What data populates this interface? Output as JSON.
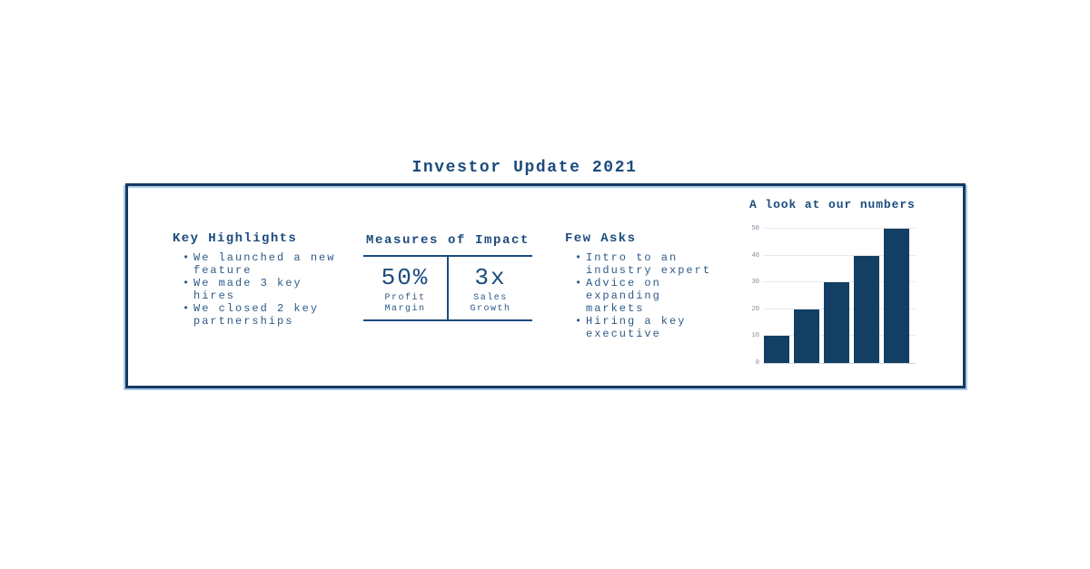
{
  "title": "Investor Update 2021",
  "card": {
    "key_highlights": {
      "heading": "Key Highlights",
      "items": [
        "We launched a new feature",
        "We made 3 key hires",
        "We closed 2 key partnerships"
      ]
    },
    "measures": {
      "heading": "Measures of Impact",
      "stats": [
        {
          "value": "50%",
          "label": "Profit Margin"
        },
        {
          "value": "3x",
          "label": "Sales Growth"
        }
      ]
    },
    "few_asks": {
      "heading": "Few Asks",
      "items": [
        "Intro to an industry expert",
        "Advice on expanding markets",
        "Hiring a key executive"
      ]
    },
    "numbers": {
      "heading": "A look at our numbers"
    }
  },
  "chart_data": {
    "type": "bar",
    "title": "A look at our numbers",
    "categories": [
      "",
      "",
      "",
      "",
      ""
    ],
    "values": [
      10,
      20,
      30,
      40,
      50
    ],
    "xlabel": "",
    "ylabel": "",
    "ylim": [
      0,
      50
    ],
    "yticks": [
      0,
      10,
      20,
      30,
      40,
      50
    ],
    "grid": true,
    "legend": false
  },
  "colors": {
    "heading": "#1B4B7D",
    "body_text": "#2D5A86",
    "border_navy": "#17395F",
    "accent_light_blue": "#A9C9E8",
    "bar_navy": "#123F63",
    "gridline": "#E6E9EC",
    "tick_label": "#7D8C9B"
  }
}
